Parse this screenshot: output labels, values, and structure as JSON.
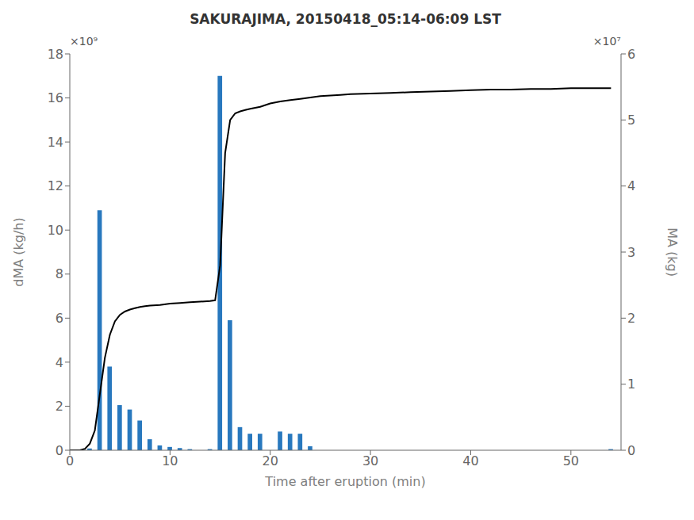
{
  "chart_data": {
    "type": "combo",
    "title": "SAKURAJIMA, 20150418_05:14-06:09 LST",
    "xlabel": "Time after eruption (min)",
    "ylabel": "dMA (kg/h)",
    "y2label": "MA (kg)",
    "annotations": [
      "×10⁹",
      "×10⁷"
    ],
    "xlim": [
      0,
      55
    ],
    "xticks": [
      0,
      10,
      20,
      30,
      40,
      50
    ],
    "ylim": [
      0,
      18
    ],
    "yticks": [
      0,
      2,
      4,
      6,
      8,
      10,
      12,
      14,
      16,
      18
    ],
    "y2lim": [
      0,
      6
    ],
    "y2ticks": [
      0,
      1,
      2,
      3,
      4,
      5,
      6
    ],
    "series": [
      {
        "type": "bar",
        "color": "#2878be",
        "x": [
          2,
          3,
          4,
          5,
          6,
          7,
          8,
          9,
          10,
          11,
          12,
          13,
          14,
          15,
          16,
          17,
          18,
          19,
          20,
          21,
          22,
          23,
          24,
          25,
          26,
          27,
          28,
          29,
          30,
          31,
          32,
          33,
          34,
          35,
          54
        ],
        "values": [
          0.08,
          10.9,
          3.8,
          2.05,
          1.85,
          1.35,
          0.5,
          0.22,
          0.15,
          0.1,
          0.05,
          0.0,
          0.05,
          17.0,
          5.9,
          1.05,
          0.75,
          0.75,
          0.0,
          0.85,
          0.75,
          0.75,
          0.18,
          0.0,
          0.0,
          0.0,
          0.0,
          0.0,
          0.0,
          0.0,
          0.0,
          0.0,
          0.0,
          0.0,
          0.05
        ]
      },
      {
        "type": "line",
        "color": "#000000",
        "axis": "y2",
        "x": [
          0,
          1,
          1.5,
          2,
          2.5,
          3,
          3.5,
          4,
          4.5,
          5,
          5.5,
          6,
          6.5,
          7,
          7.5,
          8,
          9,
          10,
          11,
          12,
          13,
          14,
          14.5,
          15,
          15.5,
          16,
          16.5,
          17,
          17.5,
          18,
          19,
          20,
          21,
          22,
          23,
          24,
          25,
          26,
          27,
          28,
          30,
          32,
          34,
          36,
          38,
          40,
          42,
          44,
          46,
          48,
          50,
          52,
          54
        ],
        "values": [
          0,
          0.0,
          0.02,
          0.1,
          0.3,
          0.85,
          1.4,
          1.75,
          1.95,
          2.05,
          2.1,
          2.13,
          2.15,
          2.17,
          2.18,
          2.19,
          2.2,
          2.22,
          2.23,
          2.24,
          2.25,
          2.26,
          2.27,
          2.8,
          4.5,
          5.0,
          5.1,
          5.13,
          5.15,
          5.17,
          5.2,
          5.25,
          5.28,
          5.3,
          5.32,
          5.34,
          5.36,
          5.37,
          5.38,
          5.39,
          5.4,
          5.41,
          5.42,
          5.43,
          5.44,
          5.45,
          5.46,
          5.46,
          5.47,
          5.47,
          5.48,
          5.48,
          5.48
        ]
      }
    ]
  }
}
